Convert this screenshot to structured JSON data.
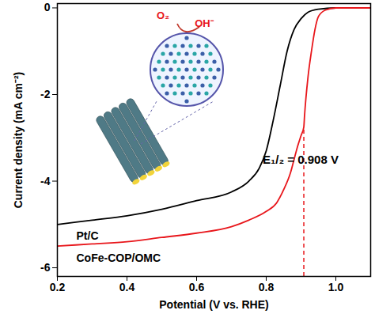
{
  "chart_data": {
    "type": "line",
    "x_label": "Potential (V vs. RHE)",
    "y_label": "Current density (mA cm⁻²)",
    "xlim": [
      0.2,
      1.1
    ],
    "ylim": [
      -6.2,
      0.1
    ],
    "xticks": [
      {
        "value": 0.2,
        "label": "0.2"
      },
      {
        "value": 0.4,
        "label": "0.4"
      },
      {
        "value": 0.6,
        "label": "0.6"
      },
      {
        "value": 0.8,
        "label": "0.8"
      },
      {
        "value": 1,
        "label": "1.0"
      }
    ],
    "yticks": [
      0,
      -2,
      -4,
      -6
    ],
    "grid": false,
    "series": [
      {
        "name": "Pt/C",
        "color": "#000000",
        "line_style": "solid",
        "x": [
          0.2,
          0.3,
          0.4,
          0.5,
          0.6,
          0.7,
          0.75,
          0.78,
          0.8,
          0.82,
          0.84,
          0.86,
          0.88,
          0.9,
          0.92,
          0.95,
          1.0,
          1.1
        ],
        "values": [
          -5.0,
          -4.9,
          -4.8,
          -4.65,
          -4.45,
          -4.25,
          -4.0,
          -3.7,
          -3.3,
          -2.6,
          -1.8,
          -1.0,
          -0.5,
          -0.25,
          -0.1,
          -0.03,
          0,
          0
        ]
      },
      {
        "name": "CoFe-COP/OMC",
        "color": "#e8161b",
        "line_style": "solid",
        "x": [
          0.2,
          0.3,
          0.4,
          0.5,
          0.6,
          0.7,
          0.75,
          0.8,
          0.83,
          0.85,
          0.87,
          0.88,
          0.89,
          0.9,
          0.908,
          0.91,
          0.92,
          0.93,
          0.94,
          0.95,
          0.97,
          1.0,
          1.1
        ],
        "values": [
          -5.5,
          -5.45,
          -5.4,
          -5.3,
          -5.2,
          -5.05,
          -4.9,
          -4.7,
          -4.5,
          -4.2,
          -3.8,
          -3.5,
          -3.2,
          -2.95,
          -2.75,
          -2.5,
          -1.6,
          -1.0,
          -0.5,
          -0.2,
          -0.05,
          0,
          0
        ]
      }
    ],
    "annotations": [
      {
        "text": "E₁/₂ = 0.908 V",
        "x": 0.908,
        "y": -2.75,
        "color": "#e8161b",
        "line_style": "dashed"
      },
      {
        "text": "O₂",
        "color": "#e8161b"
      },
      {
        "text": "OH⁻",
        "color": "#e8161b"
      }
    ]
  }
}
